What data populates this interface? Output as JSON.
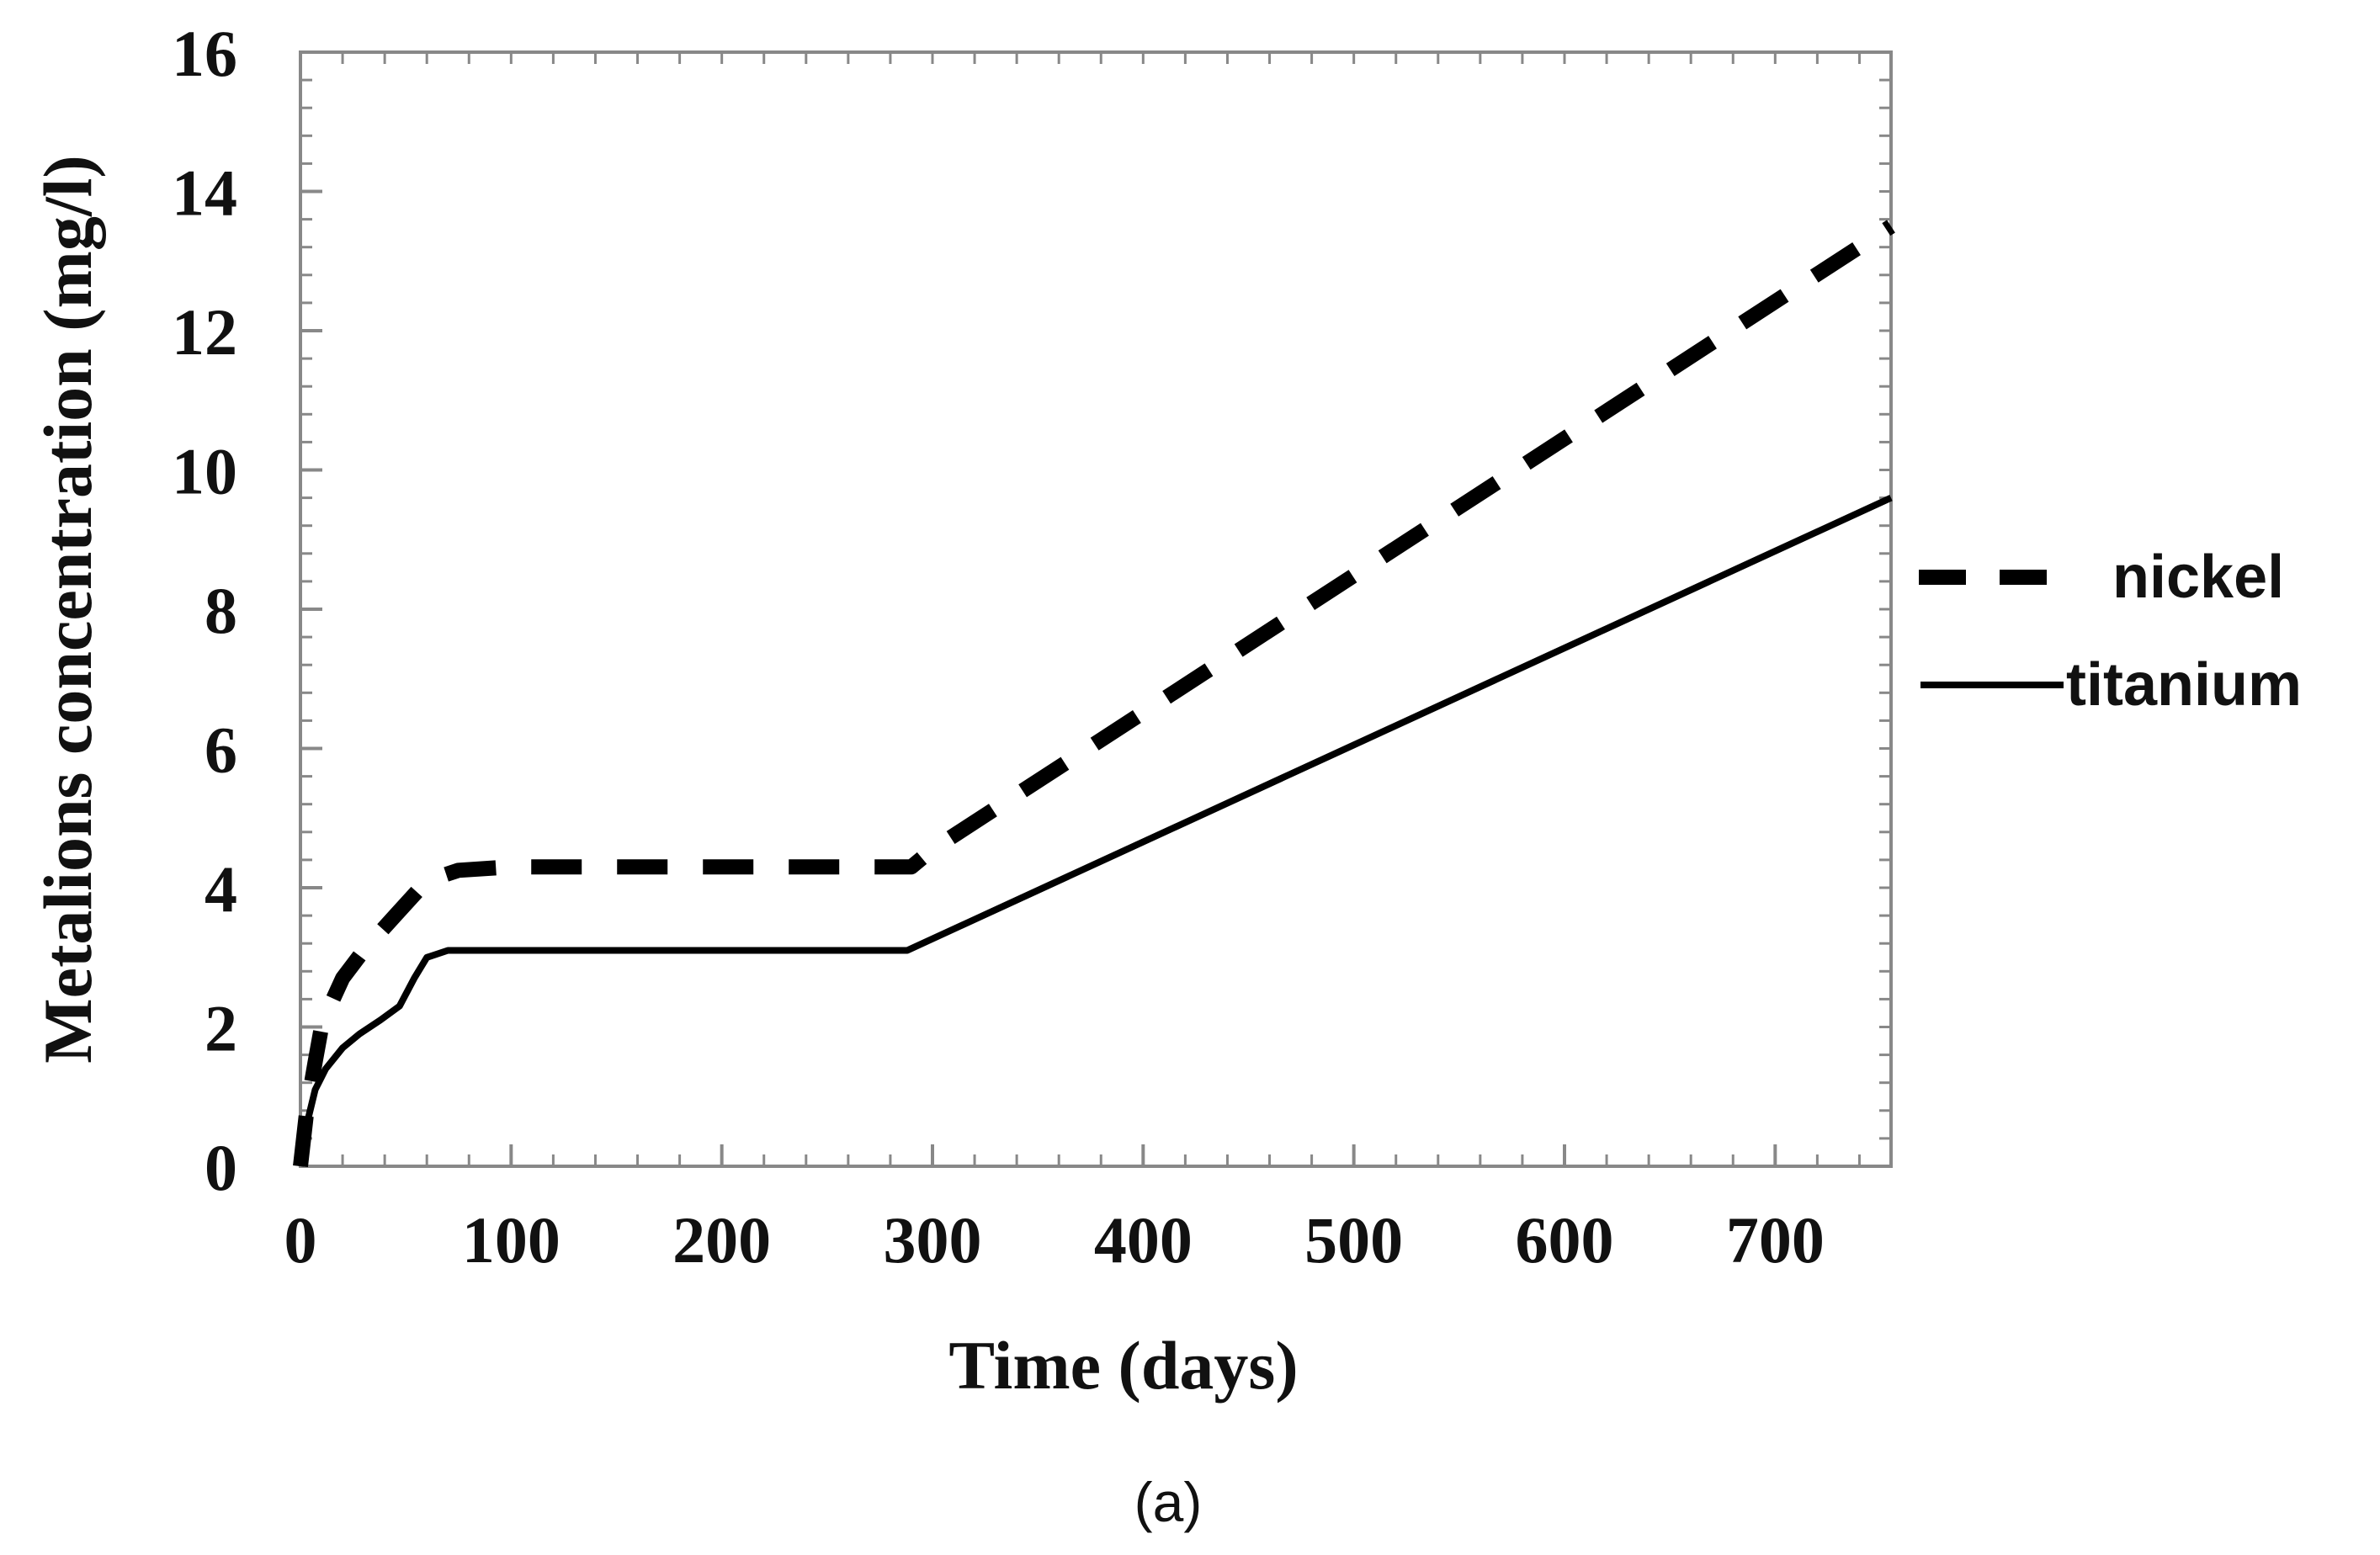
{
  "chart_data": {
    "type": "line",
    "title": "",
    "xlabel": "Time (days)",
    "ylabel": "Metalions concentration (mg/l)",
    "xlim": [
      0,
      755
    ],
    "ylim": [
      0,
      16
    ],
    "xticks": [
      0,
      100,
      200,
      300,
      400,
      500,
      600,
      700
    ],
    "yticks": [
      0,
      2,
      4,
      6,
      8,
      10,
      12,
      14,
      16
    ],
    "grid": false,
    "legend_position": "right",
    "caption": "(a)",
    "series": [
      {
        "name": "nickel",
        "style": "dashed",
        "x": [
          0,
          3,
          7,
          10,
          14,
          20,
          30,
          45,
          60,
          75,
          100,
          200,
          290,
          300,
          755
        ],
        "y": [
          0,
          0.8,
          1.5,
          2.0,
          2.3,
          2.7,
          3.1,
          3.6,
          4.1,
          4.25,
          4.3,
          4.3,
          4.3,
          4.55,
          13.5
        ]
      },
      {
        "name": "titanium",
        "style": "solid",
        "x": [
          0,
          3,
          7,
          12,
          20,
          28,
          38,
          47,
          54,
          60,
          70,
          100,
          200,
          288,
          755
        ],
        "y": [
          0,
          0.6,
          1.1,
          1.4,
          1.7,
          1.9,
          2.1,
          2.3,
          2.7,
          3.0,
          3.1,
          3.1,
          3.1,
          3.1,
          9.6
        ]
      }
    ]
  }
}
